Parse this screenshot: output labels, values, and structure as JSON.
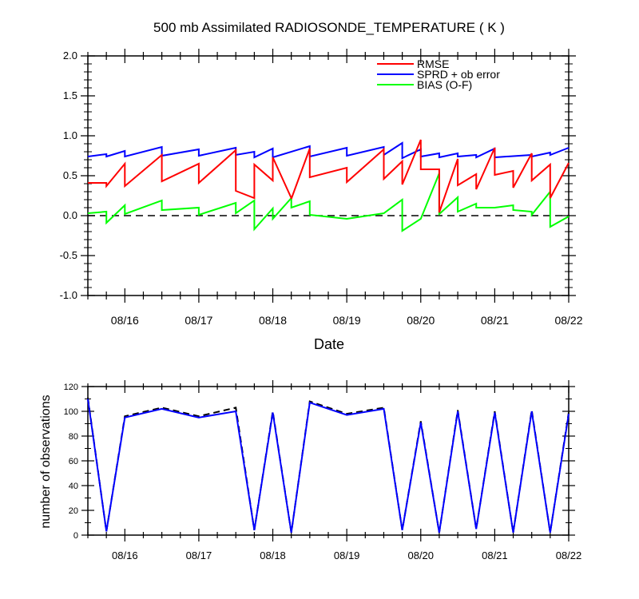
{
  "title": "500 mb Assimilated RADIOSONDE_TEMPERATURE ( K )",
  "colors": {
    "rmse": "#ff0000",
    "sprd": "#0000ff",
    "bias": "#00ff00",
    "zero_line": "#000000",
    "count_used": "#0000ff",
    "count_possible": "#000000"
  },
  "chart_data": [
    {
      "type": "line",
      "xlabel": "Date",
      "ylabel": "",
      "ylim": [
        -1.0,
        2.0
      ],
      "yticks": [
        -1.0,
        -0.5,
        0.0,
        0.5,
        1.0,
        1.5,
        2.0
      ],
      "ytick_labels": [
        "-1.0",
        "-0.5",
        "0.0",
        "0.5",
        "1.0",
        "1.5",
        "2.0"
      ],
      "xlim": [
        "2020-08-15T12:00",
        "2020-08-22T00:00"
      ],
      "xticks": [
        "2020-08-16T00:00",
        "2020-08-17T00:00",
        "2020-08-18T00:00",
        "2020-08-19T00:00",
        "2020-08-20T00:00",
        "2020-08-21T00:00",
        "2020-08-22T00:00"
      ],
      "xtick_labels": [
        "08/16",
        "08/17",
        "08/18",
        "08/19",
        "08/20",
        "08/21",
        "08/22"
      ],
      "legend_position": "top-right",
      "grid": false,
      "series": [
        {
          "name": "RMSE",
          "color": "#ff0000",
          "points": [
            [
              "2020-08-15T12:00",
              0.41
            ],
            [
              "2020-08-15T18:00",
              0.41
            ],
            [
              "2020-08-15T18:00",
              0.37
            ],
            [
              "2020-08-16T00:00",
              0.65
            ],
            [
              "2020-08-16T00:00",
              0.37
            ],
            [
              "2020-08-16T12:00",
              0.76
            ],
            [
              "2020-08-16T12:00",
              0.43
            ],
            [
              "2020-08-17T00:00",
              0.65
            ],
            [
              "2020-08-17T00:00",
              0.41
            ],
            [
              "2020-08-17T12:00",
              0.82
            ],
            [
              "2020-08-17T12:00",
              0.31
            ],
            [
              "2020-08-17T18:00",
              0.22
            ],
            [
              "2020-08-17T18:00",
              0.64
            ],
            [
              "2020-08-18T00:00",
              0.44
            ],
            [
              "2020-08-18T00:00",
              0.73
            ],
            [
              "2020-08-18T06:00",
              0.22
            ],
            [
              "2020-08-18T06:00",
              0.21
            ],
            [
              "2020-08-18T12:00",
              0.84
            ],
            [
              "2020-08-18T12:00",
              0.48
            ],
            [
              "2020-08-19T00:00",
              0.6
            ],
            [
              "2020-08-19T00:00",
              0.42
            ],
            [
              "2020-08-19T12:00",
              0.83
            ],
            [
              "2020-08-19T12:00",
              0.46
            ],
            [
              "2020-08-19T18:00",
              0.68
            ],
            [
              "2020-08-19T18:00",
              0.39
            ],
            [
              "2020-08-20T00:00",
              0.95
            ],
            [
              "2020-08-20T00:00",
              0.58
            ],
            [
              "2020-08-20T06:00",
              0.58
            ],
            [
              "2020-08-20T06:00",
              0.04
            ],
            [
              "2020-08-20T12:00",
              0.71
            ],
            [
              "2020-08-20T12:00",
              0.38
            ],
            [
              "2020-08-20T18:00",
              0.52
            ],
            [
              "2020-08-20T18:00",
              0.33
            ],
            [
              "2020-08-21T00:00",
              0.85
            ],
            [
              "2020-08-21T00:00",
              0.51
            ],
            [
              "2020-08-21T06:00",
              0.56
            ],
            [
              "2020-08-21T06:00",
              0.35
            ],
            [
              "2020-08-21T12:00",
              0.78
            ],
            [
              "2020-08-21T12:00",
              0.44
            ],
            [
              "2020-08-21T18:00",
              0.64
            ],
            [
              "2020-08-21T18:00",
              0.22
            ],
            [
              "2020-08-22T00:00",
              0.66
            ]
          ]
        },
        {
          "name": "SPRD + ob error",
          "color": "#0000ff",
          "points": [
            [
              "2020-08-15T12:00",
              0.74
            ],
            [
              "2020-08-15T18:00",
              0.77
            ],
            [
              "2020-08-15T18:00",
              0.74
            ],
            [
              "2020-08-16T00:00",
              0.81
            ],
            [
              "2020-08-16T00:00",
              0.74
            ],
            [
              "2020-08-16T12:00",
              0.86
            ],
            [
              "2020-08-16T12:00",
              0.75
            ],
            [
              "2020-08-17T00:00",
              0.83
            ],
            [
              "2020-08-17T00:00",
              0.75
            ],
            [
              "2020-08-17T12:00",
              0.85
            ],
            [
              "2020-08-17T12:00",
              0.76
            ],
            [
              "2020-08-17T18:00",
              0.8
            ],
            [
              "2020-08-17T18:00",
              0.73
            ],
            [
              "2020-08-18T00:00",
              0.84
            ],
            [
              "2020-08-18T00:00",
              0.73
            ],
            [
              "2020-08-18T12:00",
              0.87
            ],
            [
              "2020-08-18T12:00",
              0.74
            ],
            [
              "2020-08-19T00:00",
              0.85
            ],
            [
              "2020-08-19T00:00",
              0.75
            ],
            [
              "2020-08-19T12:00",
              0.86
            ],
            [
              "2020-08-19T12:00",
              0.76
            ],
            [
              "2020-08-19T18:00",
              0.91
            ],
            [
              "2020-08-19T18:00",
              0.72
            ],
            [
              "2020-08-20T00:00",
              0.83
            ],
            [
              "2020-08-20T00:00",
              0.74
            ],
            [
              "2020-08-20T06:00",
              0.78
            ],
            [
              "2020-08-20T06:00",
              0.73
            ],
            [
              "2020-08-20T12:00",
              0.78
            ],
            [
              "2020-08-20T12:00",
              0.74
            ],
            [
              "2020-08-20T18:00",
              0.76
            ],
            [
              "2020-08-20T18:00",
              0.73
            ],
            [
              "2020-08-21T00:00",
              0.84
            ],
            [
              "2020-08-21T00:00",
              0.73
            ],
            [
              "2020-08-21T12:00",
              0.76
            ],
            [
              "2020-08-21T12:00",
              0.74
            ],
            [
              "2020-08-21T18:00",
              0.79
            ],
            [
              "2020-08-21T18:00",
              0.76
            ],
            [
              "2020-08-22T00:00",
              0.85
            ]
          ]
        },
        {
          "name": "BIAS (O-F)",
          "color": "#00ff00",
          "points": [
            [
              "2020-08-15T12:00",
              0.03
            ],
            [
              "2020-08-15T18:00",
              0.05
            ],
            [
              "2020-08-15T18:00",
              -0.09
            ],
            [
              "2020-08-16T00:00",
              0.13
            ],
            [
              "2020-08-16T00:00",
              0.02
            ],
            [
              "2020-08-16T12:00",
              0.19
            ],
            [
              "2020-08-16T12:00",
              0.07
            ],
            [
              "2020-08-17T00:00",
              0.1
            ],
            [
              "2020-08-17T00:00",
              0.01
            ],
            [
              "2020-08-17T12:00",
              0.16
            ],
            [
              "2020-08-17T12:00",
              0.03
            ],
            [
              "2020-08-17T18:00",
              0.19
            ],
            [
              "2020-08-17T18:00",
              -0.17
            ],
            [
              "2020-08-18T00:00",
              0.09
            ],
            [
              "2020-08-18T00:00",
              -0.04
            ],
            [
              "2020-08-18T06:00",
              0.22
            ],
            [
              "2020-08-18T06:00",
              0.1
            ],
            [
              "2020-08-18T12:00",
              0.18
            ],
            [
              "2020-08-18T12:00",
              0.01
            ],
            [
              "2020-08-19T00:00",
              -0.04
            ],
            [
              "2020-08-19T00:00",
              -0.04
            ],
            [
              "2020-08-19T12:00",
              0.03
            ],
            [
              "2020-08-19T12:00",
              0.03
            ],
            [
              "2020-08-19T18:00",
              0.2
            ],
            [
              "2020-08-19T18:00",
              -0.19
            ],
            [
              "2020-08-20T00:00",
              -0.04
            ],
            [
              "2020-08-20T00:00",
              -0.04
            ],
            [
              "2020-08-20T06:00",
              0.53
            ],
            [
              "2020-08-20T06:00",
              0.02
            ],
            [
              "2020-08-20T12:00",
              0.23
            ],
            [
              "2020-08-20T12:00",
              0.05
            ],
            [
              "2020-08-20T18:00",
              0.15
            ],
            [
              "2020-08-20T18:00",
              0.1
            ],
            [
              "2020-08-21T00:00",
              0.1
            ],
            [
              "2020-08-21T00:00",
              0.1
            ],
            [
              "2020-08-21T06:00",
              0.13
            ],
            [
              "2020-08-21T06:00",
              0.07
            ],
            [
              "2020-08-21T12:00",
              0.05
            ],
            [
              "2020-08-21T12:00",
              0.01
            ],
            [
              "2020-08-21T18:00",
              0.3
            ],
            [
              "2020-08-21T18:00",
              -0.14
            ],
            [
              "2020-08-22T00:00",
              -0.01
            ]
          ]
        }
      ],
      "reference_line": {
        "y": 0.0,
        "style": "dashed"
      }
    },
    {
      "type": "line",
      "xlabel": "",
      "ylabel": "number of observations",
      "ylim": [
        0,
        120
      ],
      "yticks": [
        0,
        20,
        40,
        60,
        80,
        100,
        120
      ],
      "ytick_labels": [
        "0",
        "20",
        "40",
        "60",
        "80",
        "100",
        "120"
      ],
      "xlim": [
        "2020-08-15T12:00",
        "2020-08-22T00:00"
      ],
      "xticks": [
        "2020-08-16T00:00",
        "2020-08-17T00:00",
        "2020-08-18T00:00",
        "2020-08-19T00:00",
        "2020-08-20T00:00",
        "2020-08-21T00:00",
        "2020-08-22T00:00"
      ],
      "xtick_labels": [
        "08/16",
        "08/17",
        "08/18",
        "08/19",
        "08/20",
        "08/21",
        "08/22"
      ],
      "grid": false,
      "series": [
        {
          "color": "#0000ff",
          "style": "solid",
          "x": [
            "2020-08-15T12:00",
            "2020-08-15T18:00",
            "2020-08-16T00:00",
            "2020-08-16T12:00",
            "2020-08-17T00:00",
            "2020-08-17T12:00",
            "2020-08-17T18:00",
            "2020-08-18T00:00",
            "2020-08-18T06:00",
            "2020-08-18T12:00",
            "2020-08-19T00:00",
            "2020-08-19T12:00",
            "2020-08-19T18:00",
            "2020-08-20T00:00",
            "2020-08-20T06:00",
            "2020-08-20T12:00",
            "2020-08-20T18:00",
            "2020-08-21T00:00",
            "2020-08-21T06:00",
            "2020-08-21T12:00",
            "2020-08-21T18:00",
            "2020-08-22T00:00"
          ],
          "values": [
            110,
            3,
            95,
            102,
            95,
            100,
            4,
            99,
            2,
            107,
            97,
            102,
            4,
            91,
            2,
            100,
            5,
            99,
            2,
            100,
            2,
            98
          ]
        },
        {
          "color": "#000000",
          "style": "dashed",
          "x": [
            "2020-08-15T12:00",
            "2020-08-15T18:00",
            "2020-08-16T00:00",
            "2020-08-16T12:00",
            "2020-08-17T00:00",
            "2020-08-17T12:00",
            "2020-08-17T18:00",
            "2020-08-18T00:00",
            "2020-08-18T06:00",
            "2020-08-18T12:00",
            "2020-08-19T00:00",
            "2020-08-19T12:00",
            "2020-08-19T18:00",
            "2020-08-20T00:00",
            "2020-08-20T06:00",
            "2020-08-20T12:00",
            "2020-08-20T18:00",
            "2020-08-21T00:00",
            "2020-08-21T06:00",
            "2020-08-21T12:00",
            "2020-08-21T18:00",
            "2020-08-22T00:00"
          ],
          "values": [
            111,
            3,
            96,
            103,
            96,
            103,
            4,
            100,
            2,
            108,
            98,
            103,
            4,
            92,
            2,
            101,
            5,
            100,
            2,
            101,
            2,
            99
          ]
        }
      ]
    }
  ]
}
